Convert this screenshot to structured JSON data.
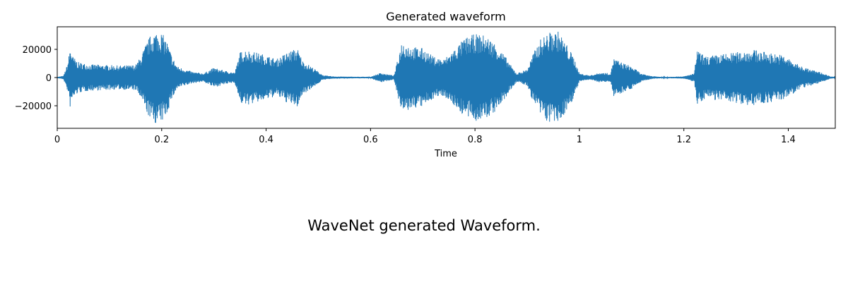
{
  "chart_data": {
    "type": "line",
    "title": "Generated waveform",
    "xlabel": "Time",
    "ylabel": "",
    "xlim": [
      0,
      1.49
    ],
    "ylim": [
      -36000,
      36000
    ],
    "x_ticks": [
      0,
      0.2,
      0.4,
      0.6,
      0.8,
      1,
      1.2,
      1.4
    ],
    "x_tick_labels": [
      "0",
      "0.2",
      "0.4",
      "0.6",
      "0.8",
      "1",
      "1.2",
      "1.4"
    ],
    "y_ticks": [
      20000,
      0,
      -20000
    ],
    "y_tick_labels": [
      "20000",
      "0",
      "−20000"
    ],
    "grid": false,
    "series": [
      {
        "color": "#1f77b4",
        "envelope": {
          "time": [
            0,
            0.012,
            0.02,
            0.025,
            0.03,
            0.04,
            0.06,
            0.09,
            0.12,
            0.15,
            0.16,
            0.17,
            0.18,
            0.19,
            0.2,
            0.21,
            0.22,
            0.23,
            0.24,
            0.26,
            0.28,
            0.3,
            0.32,
            0.34,
            0.35,
            0.36,
            0.38,
            0.4,
            0.42,
            0.44,
            0.46,
            0.47,
            0.49,
            0.51,
            0.53,
            0.56,
            0.6,
            0.62,
            0.63,
            0.645,
            0.66,
            0.68,
            0.7,
            0.72,
            0.74,
            0.76,
            0.78,
            0.8,
            0.82,
            0.84,
            0.86,
            0.87,
            0.88,
            0.9,
            0.91,
            0.925,
            0.94,
            0.96,
            0.975,
            0.99,
            1.0,
            1.02,
            1.04,
            1.06,
            1.065,
            1.08,
            1.1,
            1.12,
            1.14,
            1.16,
            1.2,
            1.22,
            1.225,
            1.24,
            1.26,
            1.28,
            1.3,
            1.33,
            1.36,
            1.39,
            1.42,
            1.44,
            1.46,
            1.48,
            1.49
          ],
          "amplitude": [
            400,
            1200,
            10000,
            22000,
            15000,
            11000,
            9500,
            9000,
            8500,
            9000,
            15000,
            24000,
            31000,
            33000,
            32000,
            26000,
            15000,
            8000,
            6500,
            4000,
            3000,
            7000,
            5000,
            3500,
            18000,
            20000,
            18000,
            16000,
            13000,
            18000,
            21000,
            12000,
            7000,
            1500,
            800,
            600,
            500,
            3500,
            2500,
            1500,
            26000,
            22000,
            21000,
            15000,
            13000,
            20000,
            28000,
            31000,
            30000,
            24000,
            14000,
            8000,
            3000,
            6000,
            16000,
            27000,
            32000,
            33000,
            24000,
            14000,
            3000,
            1500,
            3500,
            3000,
            14000,
            11000,
            8000,
            2500,
            1000,
            400,
            800,
            3000,
            20000,
            15000,
            16000,
            17000,
            18000,
            20000,
            18000,
            16000,
            9000,
            6000,
            4000,
            1000,
            300
          ]
        }
      }
    ]
  },
  "caption": "WaveNet generated Waveform."
}
